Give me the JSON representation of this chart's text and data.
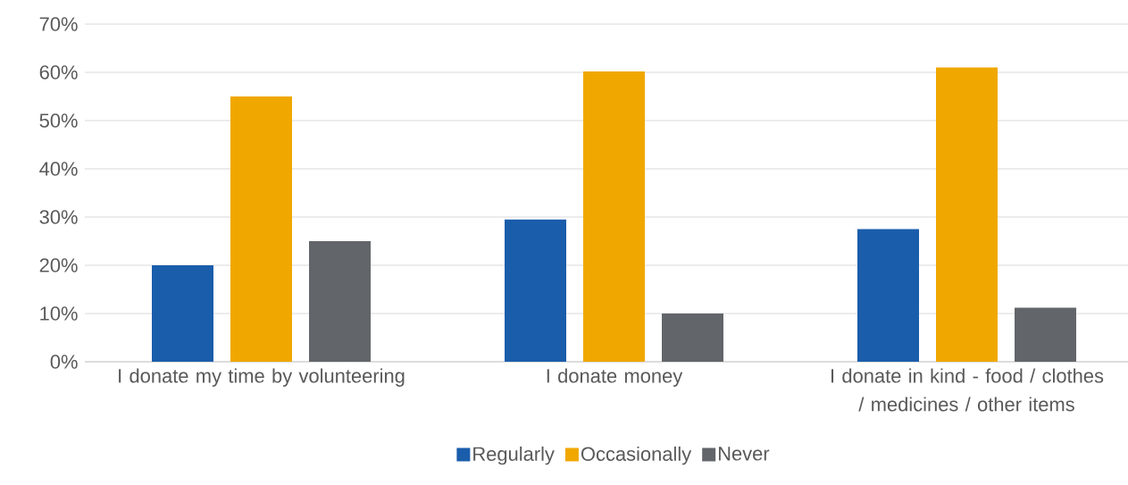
{
  "chart_data": {
    "type": "bar",
    "categories": [
      "I donate my time by volunteering",
      "I donate money",
      "I donate in kind - food / clothes / medicines / other items"
    ],
    "series": [
      {
        "name": "Regularly",
        "color": "#1a5dab",
        "values": [
          20,
          29.5,
          27.5
        ]
      },
      {
        "name": "Occasionally",
        "color": "#f0a800",
        "values": [
          55,
          60.2,
          61
        ]
      },
      {
        "name": "Never",
        "color": "#626569",
        "values": [
          25,
          10,
          11.2
        ]
      }
    ],
    "ylim": [
      0,
      70
    ],
    "yticks": [
      {
        "value": 0,
        "label": "0%"
      },
      {
        "value": 10,
        "label": "10%"
      },
      {
        "value": 20,
        "label": "20%"
      },
      {
        "value": 30,
        "label": "30%"
      },
      {
        "value": 40,
        "label": "40%"
      },
      {
        "value": 50,
        "label": "50%"
      },
      {
        "value": 60,
        "label": "60%"
      },
      {
        "value": 70,
        "label": "70%"
      }
    ],
    "grid": "y",
    "legend": "bottom"
  }
}
